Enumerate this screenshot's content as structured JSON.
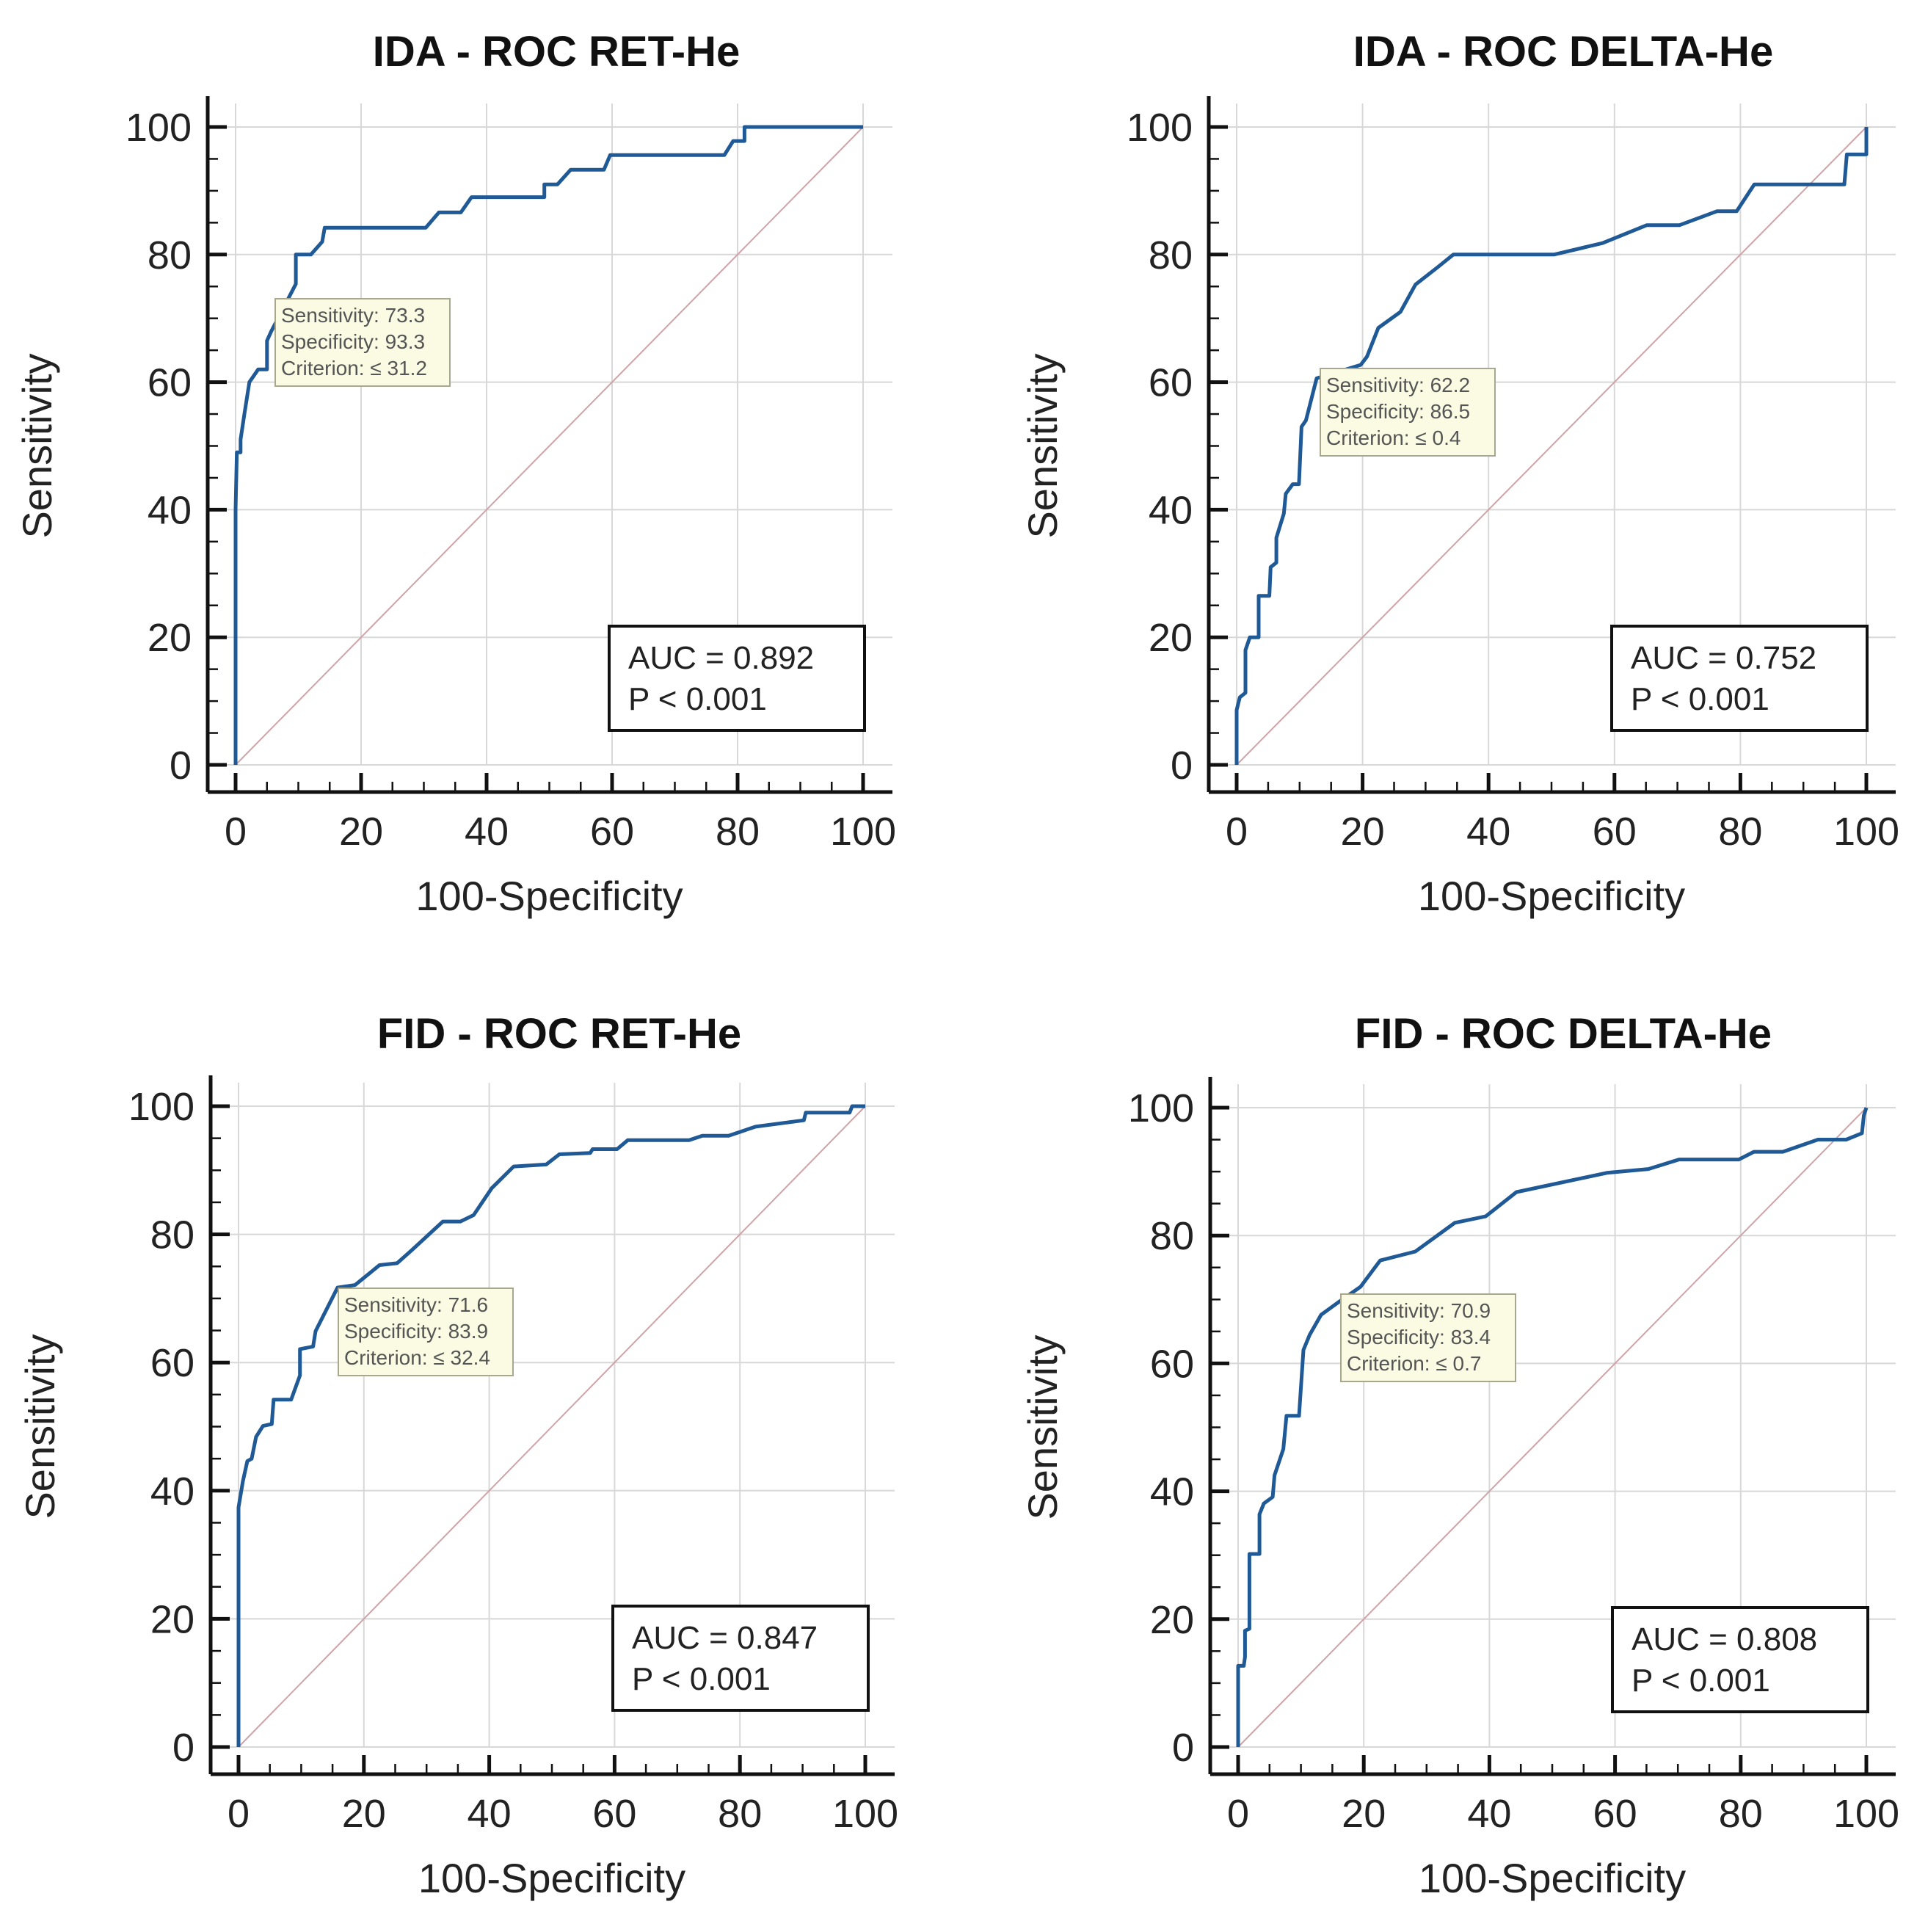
{
  "chart_data": [
    {
      "type": "line",
      "title": "IDA - ROC RET-He",
      "xlabel": "100-Specificity",
      "ylabel": "Sensitivity",
      "xlim": [
        0,
        100
      ],
      "ylim": [
        0,
        100
      ],
      "grid": true,
      "xticks": [
        "0",
        "20",
        "40",
        "60",
        "80",
        "100"
      ],
      "yticks": [
        "0",
        "20",
        "40",
        "60",
        "80",
        "100"
      ],
      "annotation": [
        "Sensitivity: 73.3",
        "Specificity: 93.3",
        "Criterion: ≤ 31.2"
      ],
      "auc": "AUC = 0.892",
      "p": "P < 0.001",
      "curve_color": "#1f5a96",
      "points": [
        [
          0,
          0
        ],
        [
          0,
          40
        ],
        [
          0.2,
          49
        ],
        [
          0.8,
          49
        ],
        [
          0.8,
          51
        ],
        [
          1.4,
          55
        ],
        [
          2.2,
          60
        ],
        [
          3.6,
          62
        ],
        [
          5,
          62
        ],
        [
          5,
          66.5
        ],
        [
          5.7,
          68
        ],
        [
          8.5,
          73.3
        ],
        [
          9.6,
          75.4
        ],
        [
          9.6,
          80
        ],
        [
          12,
          80
        ],
        [
          13.8,
          82
        ],
        [
          14.2,
          84.2
        ],
        [
          30.3,
          84.2
        ],
        [
          32.4,
          86.6
        ],
        [
          35.9,
          86.6
        ],
        [
          37.6,
          89
        ],
        [
          49.2,
          89
        ],
        [
          49.2,
          91
        ],
        [
          51.3,
          91
        ],
        [
          53.4,
          93.3
        ],
        [
          58.7,
          93.3
        ],
        [
          59.7,
          95.6
        ],
        [
          77.9,
          95.6
        ],
        [
          79.3,
          97.8
        ],
        [
          81.1,
          97.8
        ],
        [
          81.1,
          100
        ],
        [
          100,
          100
        ]
      ]
    },
    {
      "type": "line",
      "title": "IDA - ROC DELTA-He",
      "xlabel": "100-Specificity",
      "ylabel": "Sensitivity",
      "xlim": [
        0,
        100
      ],
      "ylim": [
        0,
        100
      ],
      "grid": true,
      "xticks": [
        "0",
        "20",
        "40",
        "60",
        "80",
        "100"
      ],
      "yticks": [
        "0",
        "20",
        "40",
        "60",
        "80",
        "100"
      ],
      "annotation": [
        "Sensitivity: 62.2",
        "Specificity: 86.5",
        "Criterion: ≤ 0.4"
      ],
      "auc": "AUC = 0.752",
      "p": "P < 0.001",
      "curve_color": "#1f5a96",
      "points": [
        [
          0,
          0
        ],
        [
          0,
          8.6
        ],
        [
          0.5,
          10.6
        ],
        [
          1.4,
          11.3
        ],
        [
          1.4,
          18
        ],
        [
          2.1,
          20
        ],
        [
          3.5,
          20
        ],
        [
          3.5,
          26.5
        ],
        [
          5.2,
          26.5
        ],
        [
          5.4,
          31
        ],
        [
          6.3,
          31.7
        ],
        [
          6.3,
          35.6
        ],
        [
          7.5,
          39.4
        ],
        [
          7.8,
          42.5
        ],
        [
          8.9,
          44
        ],
        [
          9.9,
          44
        ],
        [
          10.3,
          53
        ],
        [
          11,
          54
        ],
        [
          12.7,
          60.6
        ],
        [
          19.7,
          62.7
        ],
        [
          20.7,
          64
        ],
        [
          22.5,
          68.5
        ],
        [
          26,
          71
        ],
        [
          28.4,
          75.3
        ],
        [
          31.9,
          78
        ],
        [
          34.4,
          80
        ],
        [
          50.4,
          80
        ],
        [
          58.1,
          81.8
        ],
        [
          65.1,
          84.6
        ],
        [
          70.3,
          84.6
        ],
        [
          76.3,
          86.8
        ],
        [
          79.4,
          86.8
        ],
        [
          82.2,
          91
        ],
        [
          96.5,
          91
        ],
        [
          96.9,
          95.7
        ],
        [
          100,
          95.7
        ],
        [
          100,
          100
        ]
      ]
    },
    {
      "type": "line",
      "title": "FID - ROC RET-He",
      "xlabel": "100-Specificity",
      "ylabel": "Sensitivity",
      "xlim": [
        0,
        100
      ],
      "ylim": [
        0,
        100
      ],
      "grid": true,
      "xticks": [
        "0",
        "20",
        "40",
        "60",
        "80",
        "100"
      ],
      "yticks": [
        "0",
        "20",
        "40",
        "60",
        "80",
        "100"
      ],
      "annotation": [
        "Sensitivity: 71.6",
        "Specificity: 83.9",
        "Criterion: ≤ 32.4"
      ],
      "auc": "AUC = 0.847",
      "p": "P < 0.001",
      "curve_color": "#1f5a96",
      "points": [
        [
          0,
          0
        ],
        [
          0,
          37.4
        ],
        [
          0.7,
          41.5
        ],
        [
          1.4,
          44.6
        ],
        [
          2.1,
          45
        ],
        [
          2.8,
          48.4
        ],
        [
          3.9,
          50.1
        ],
        [
          5.3,
          50.4
        ],
        [
          5.6,
          54.2
        ],
        [
          8.4,
          54.2
        ],
        [
          9.8,
          58
        ],
        [
          9.8,
          62.1
        ],
        [
          11.9,
          62.5
        ],
        [
          12.3,
          64.9
        ],
        [
          15.8,
          71.7
        ],
        [
          18.6,
          72.1
        ],
        [
          22.5,
          75.2
        ],
        [
          25.3,
          75.5
        ],
        [
          27.7,
          77.6
        ],
        [
          32.6,
          82
        ],
        [
          35.4,
          82
        ],
        [
          37.5,
          83
        ],
        [
          40.4,
          87.2
        ],
        [
          43.9,
          90.6
        ],
        [
          49.1,
          90.9
        ],
        [
          51.2,
          92.5
        ],
        [
          56.1,
          92.7
        ],
        [
          56.5,
          93.3
        ],
        [
          60.4,
          93.3
        ],
        [
          62.1,
          94.7
        ],
        [
          71.9,
          94.7
        ],
        [
          74,
          95.4
        ],
        [
          78.2,
          95.4
        ],
        [
          82.5,
          96.8
        ],
        [
          90.2,
          97.8
        ],
        [
          90.5,
          99
        ],
        [
          97.5,
          99
        ],
        [
          97.9,
          100
        ],
        [
          100,
          100
        ]
      ]
    },
    {
      "type": "line",
      "title": "FID - ROC DELTA-He",
      "xlabel": "100-Specificity",
      "ylabel": "Sensitivity",
      "xlim": [
        0,
        100
      ],
      "ylim": [
        0,
        100
      ],
      "grid": true,
      "xticks": [
        "0",
        "20",
        "40",
        "60",
        "80",
        "100"
      ],
      "yticks": [
        "0",
        "20",
        "40",
        "60",
        "80",
        "100"
      ],
      "annotation": [
        "Sensitivity: 70.9",
        "Specificity: 83.4",
        "Criterion:   ≤ 0.7"
      ],
      "auc": "AUC = 0.808",
      "p": "P < 0.001",
      "curve_color": "#1f5a96",
      "points": [
        [
          0,
          0
        ],
        [
          0,
          12.7
        ],
        [
          0.9,
          12.7
        ],
        [
          1.1,
          14.1
        ],
        [
          1.1,
          18.2
        ],
        [
          1.8,
          18.5
        ],
        [
          1.8,
          30.2
        ],
        [
          3.4,
          30.2
        ],
        [
          3.4,
          36.4
        ],
        [
          4.1,
          38.1
        ],
        [
          5.5,
          39.1
        ],
        [
          5.8,
          42.5
        ],
        [
          7.2,
          46.6
        ],
        [
          7.7,
          51.8
        ],
        [
          9.7,
          51.8
        ],
        [
          10.4,
          62.1
        ],
        [
          11.4,
          64.5
        ],
        [
          13.2,
          67.6
        ],
        [
          14.6,
          68.6
        ],
        [
          16,
          69.6
        ],
        [
          19.5,
          72
        ],
        [
          22.6,
          76.1
        ],
        [
          28.2,
          77.5
        ],
        [
          34.5,
          82
        ],
        [
          39.4,
          83
        ],
        [
          44.3,
          86.8
        ],
        [
          58.7,
          89.8
        ],
        [
          65.3,
          90.4
        ],
        [
          70.2,
          91.9
        ],
        [
          79.7,
          91.9
        ],
        [
          82.1,
          93.1
        ],
        [
          86.7,
          93.1
        ],
        [
          92.3,
          95
        ],
        [
          96.8,
          95
        ],
        [
          99.3,
          96
        ],
        [
          99.6,
          98.8
        ],
        [
          100,
          100
        ]
      ]
    }
  ]
}
